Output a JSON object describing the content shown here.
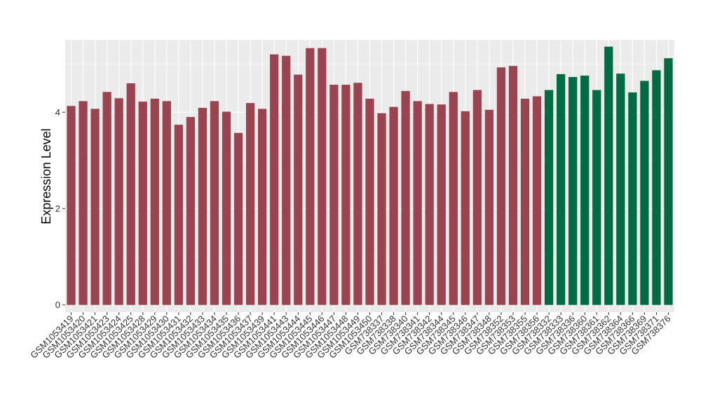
{
  "chart_data": {
    "type": "bar",
    "title": "",
    "xlabel": "",
    "ylabel": "Expression Level",
    "ylim": [
      -0.15,
      5.5
    ],
    "yticks": [
      0,
      2,
      4
    ],
    "grid": true,
    "legend": "none",
    "colors": {
      "panel": "#EBEBEB",
      "gridline": "#FFFFFF",
      "group_1": "#9A4452",
      "group_2": "#006B44"
    },
    "categories": [
      "GSM1053419",
      "GSM1053420",
      "GSM1053421",
      "GSM1053423",
      "GSM1053424",
      "GSM1053425",
      "GSM1053428",
      "GSM1053429",
      "GSM1053430",
      "GSM1053431",
      "GSM1053432",
      "GSM1053433",
      "GSM1053434",
      "GSM1053435",
      "GSM1053436",
      "GSM1053437",
      "GSM1053439",
      "GSM1053441",
      "GSM1053443",
      "GSM1053444",
      "GSM1053445",
      "GSM1053446",
      "GSM1053447",
      "GSM1053448",
      "GSM1053449",
      "GSM1053450",
      "GSM738337",
      "GSM738338",
      "GSM738340",
      "GSM738341",
      "GSM738342",
      "GSM738344",
      "GSM738345",
      "GSM738346",
      "GSM738347",
      "GSM738348",
      "GSM738352",
      "GSM738353",
      "GSM738355",
      "GSM738356",
      "GSM738332",
      "GSM738333",
      "GSM738336",
      "GSM738360",
      "GSM738361",
      "GSM738362",
      "GSM738364",
      "GSM738366",
      "GSM738369",
      "GSM738371",
      "GSM738376"
    ],
    "values": [
      4.13,
      4.23,
      4.07,
      4.42,
      4.29,
      4.6,
      4.22,
      4.28,
      4.23,
      3.74,
      3.9,
      4.09,
      4.23,
      4.01,
      3.57,
      4.19,
      4.07,
      5.2,
      5.17,
      4.78,
      5.33,
      5.33,
      4.57,
      4.57,
      4.61,
      4.28,
      3.98,
      4.11,
      4.44,
      4.23,
      4.17,
      4.16,
      4.42,
      4.02,
      4.46,
      4.05,
      4.93,
      4.96,
      4.28,
      4.33,
      4.46,
      4.79,
      4.73,
      4.76,
      4.46,
      5.36,
      4.8,
      4.41,
      4.65,
      4.87,
      5.12
    ],
    "groups": [
      1,
      1,
      1,
      1,
      1,
      1,
      1,
      1,
      1,
      1,
      1,
      1,
      1,
      1,
      1,
      1,
      1,
      1,
      1,
      1,
      1,
      1,
      1,
      1,
      1,
      1,
      1,
      1,
      1,
      1,
      1,
      1,
      1,
      1,
      1,
      1,
      1,
      1,
      1,
      1,
      2,
      2,
      2,
      2,
      2,
      2,
      2,
      2,
      2,
      2,
      2
    ]
  }
}
